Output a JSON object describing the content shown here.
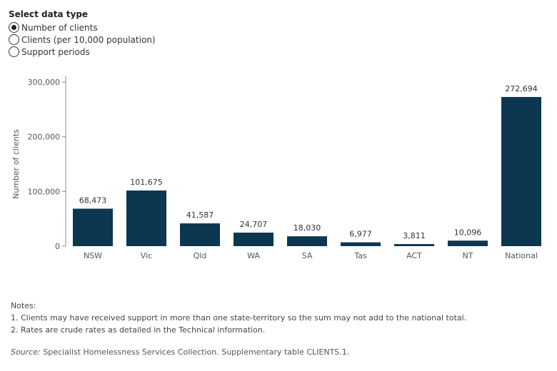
{
  "selector": {
    "title": "Select data type",
    "options": [
      {
        "label": "Number of clients",
        "selected": true
      },
      {
        "label": "Clients (per 10,000 population)",
        "selected": false
      },
      {
        "label": "Support periods",
        "selected": false
      }
    ]
  },
  "colors": {
    "bar": "#0d3650",
    "axis": "#888888",
    "text": "#555555"
  },
  "chart_data": {
    "type": "bar",
    "title": "",
    "xlabel": "",
    "ylabel": "Number of clients",
    "categories": [
      "NSW",
      "Vic",
      "Qld",
      "WA",
      "SA",
      "Tas",
      "ACT",
      "NT",
      "National"
    ],
    "values": [
      68473,
      101675,
      41587,
      24707,
      18030,
      6977,
      3811,
      10096,
      272694
    ],
    "data_labels": [
      "68,473",
      "101,675",
      "41,587",
      "24,707",
      "18,030",
      "6,977",
      "3,811",
      "10,096",
      "272,694"
    ],
    "ylim": [
      0,
      300000
    ],
    "yticks": [
      0,
      100000,
      200000,
      300000
    ],
    "ytick_labels": [
      "0",
      "100,000",
      "200,000",
      "300,000"
    ],
    "grid": false,
    "legend": "none"
  },
  "notes": {
    "heading": "Notes:",
    "items": [
      "1. Clients may have received support in more than one state-territory so the sum may not add to the national total.",
      "2. Rates are crude rates as detailed in the Technical information."
    ]
  },
  "source": {
    "label": "Source:",
    "text": " Specialist Homelessness Services Collection. Supplementary table CLIENTS.1."
  }
}
